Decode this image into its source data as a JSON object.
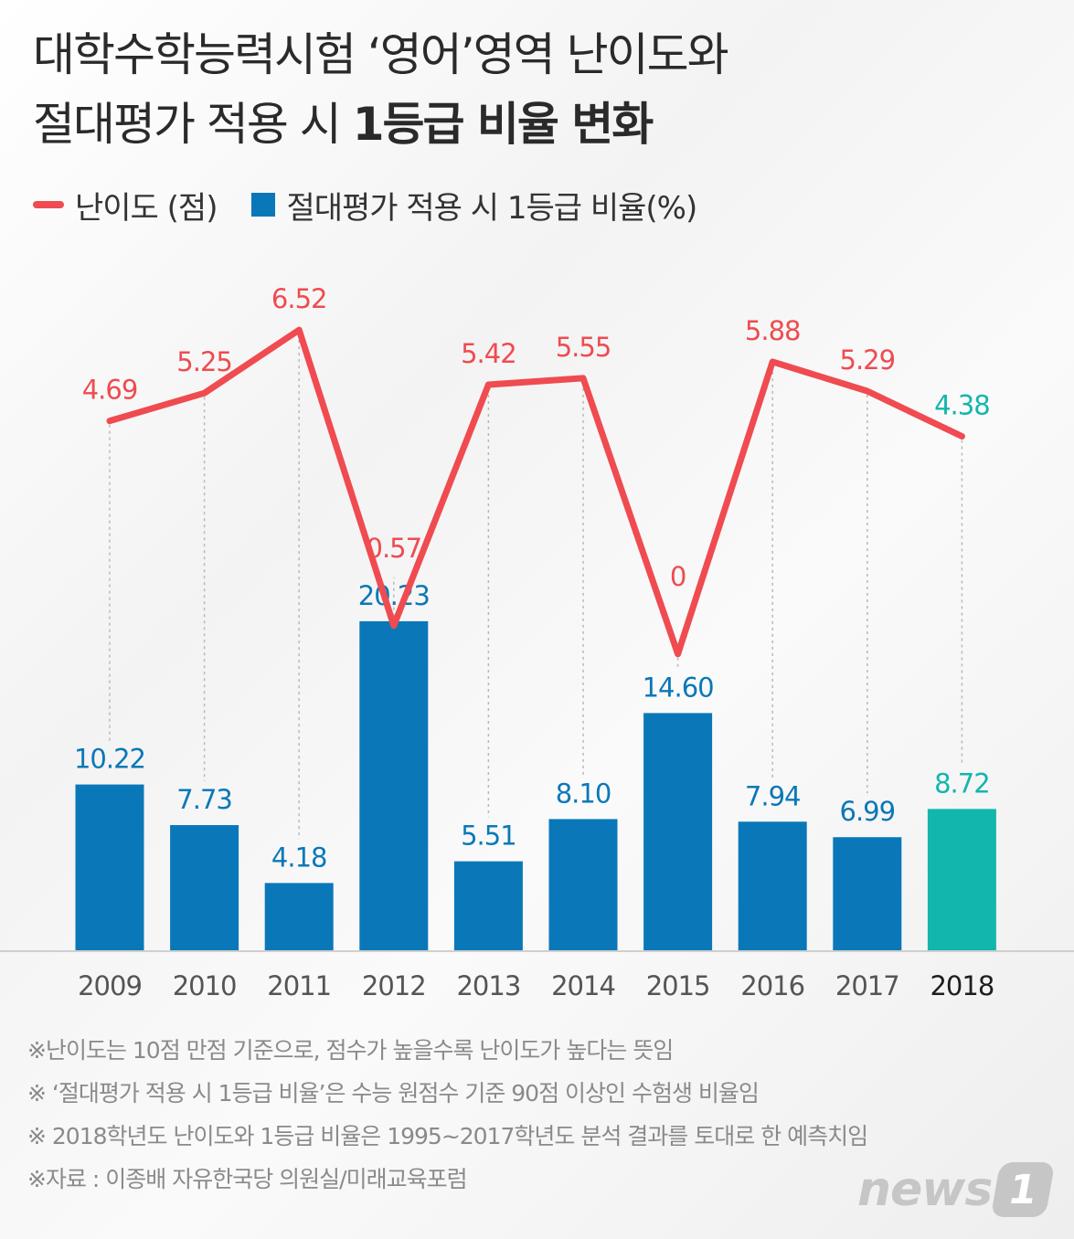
{
  "title": {
    "line1": "대학수학능력시험 ‘영어’영역 난이도와",
    "line2_prefix": "절대평가 적용 시 ",
    "line2_bold": "1등급 비율 변화"
  },
  "legend": {
    "difficulty": "난이도 (점)",
    "ratio": "절대평가 적용 시 1등급 비율(%)"
  },
  "colors": {
    "line": "#ef4b50",
    "bar": "#0a78b8",
    "highlight": "#13b6ad",
    "axis_text": "#555555"
  },
  "chart_data": {
    "type": "bar+line",
    "categories": [
      "2009",
      "2010",
      "2011",
      "2012",
      "2013",
      "2014",
      "2015",
      "2016",
      "2017",
      "2018"
    ],
    "series": [
      {
        "name": "난이도 (점)",
        "type": "line",
        "values": [
          4.69,
          5.25,
          6.52,
          0.57,
          5.42,
          5.55,
          0,
          5.88,
          5.29,
          4.38
        ],
        "labels": [
          "4.69",
          "5.25",
          "6.52",
          "0.57",
          "5.42",
          "5.55",
          "0",
          "5.88",
          "5.29",
          "4.38"
        ]
      },
      {
        "name": "절대평가 적용 시 1등급 비율(%)",
        "type": "bar",
        "values": [
          10.22,
          7.73,
          4.18,
          20.23,
          5.51,
          8.1,
          14.6,
          7.94,
          6.99,
          8.72
        ],
        "labels": [
          "10.22",
          "7.73",
          "4.18",
          "20.23",
          "5.51",
          "8.10",
          "14.60",
          "7.94",
          "6.99",
          "8.72"
        ]
      }
    ],
    "highlight_category": "2018",
    "grid": false,
    "legend_position": "top-left"
  },
  "notes": [
    "※난이도는 10점 만점 기준으로, 점수가 높을수록 난이도가 높다는 뜻임",
    "※ ‘절대평가 적용 시 1등급 비율’은 수능 원점수 기준 90점 이상인 수험생 비율임",
    "※ 2018학년도 난이도와 1등급 비율은 1995~2017학년도 분석 결과를 토대로 한 예측치임",
    "※자료 : 이종배 자유한국당 의원실/미래교육포럼"
  ],
  "logo": {
    "word": "news",
    "badge": "1"
  }
}
